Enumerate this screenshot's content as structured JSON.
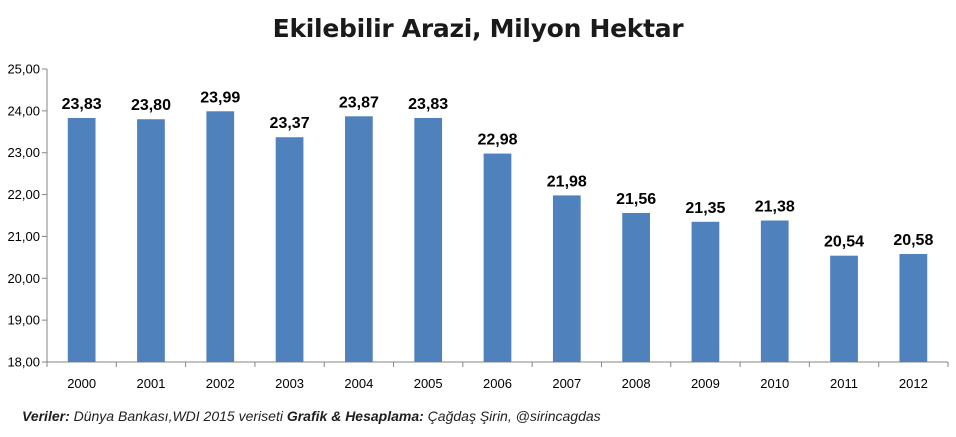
{
  "chart_data": {
    "type": "bar",
    "title": "Ekilebilir Arazi, Milyon Hektar",
    "categories": [
      "2000",
      "2001",
      "2002",
      "2003",
      "2004",
      "2005",
      "2006",
      "2007",
      "2008",
      "2009",
      "2010",
      "2011",
      "2012"
    ],
    "values": [
      23.83,
      23.8,
      23.99,
      23.37,
      23.87,
      23.83,
      22.98,
      21.98,
      21.56,
      21.35,
      21.38,
      20.54,
      20.58
    ],
    "value_labels": [
      "23,83",
      "23,80",
      "23,99",
      "23,37",
      "23,87",
      "23,83",
      "22,98",
      "21,98",
      "21,56",
      "21,35",
      "21,38",
      "20,54",
      "20,58"
    ],
    "yticks": [
      "18,00",
      "19,00",
      "20,00",
      "21,00",
      "22,00",
      "23,00",
      "24,00",
      "25,00"
    ],
    "ylim": [
      18,
      25
    ],
    "xlabel": "",
    "ylabel": "",
    "grid": false,
    "legend": "none",
    "bar_color": "#4f81bd"
  },
  "footer": {
    "source_label": "Veriler:",
    "source_text": " Dünya Bankası,WDI 2015 veriseti ",
    "author_label": "Grafik & Hesaplama:",
    "author_text": " Çağdaş Şirin, @sirincagdas"
  }
}
